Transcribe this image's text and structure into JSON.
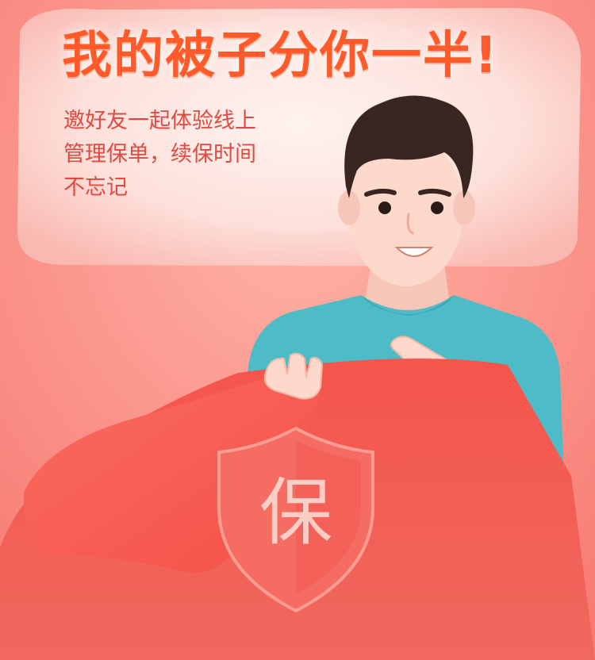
{
  "headline": "我的被子分你一半!",
  "subtext": {
    "line1": "邀好友一起体验线上",
    "line2": "管理保单，续保时间",
    "line3": "不忘记"
  },
  "shield_badge": "保",
  "colors": {
    "background": "#f98a82",
    "pillow": "#fde3de",
    "blanket": "#f0524a",
    "headline": "#ff5a2a",
    "subtext": "#e04a40",
    "shirt": "#4dbcc6",
    "hair": "#3a2620",
    "skin": "#fdd9cc"
  },
  "icons": [
    "shield-icon",
    "man-illustration",
    "pillow-illustration",
    "blanket-illustration"
  ]
}
